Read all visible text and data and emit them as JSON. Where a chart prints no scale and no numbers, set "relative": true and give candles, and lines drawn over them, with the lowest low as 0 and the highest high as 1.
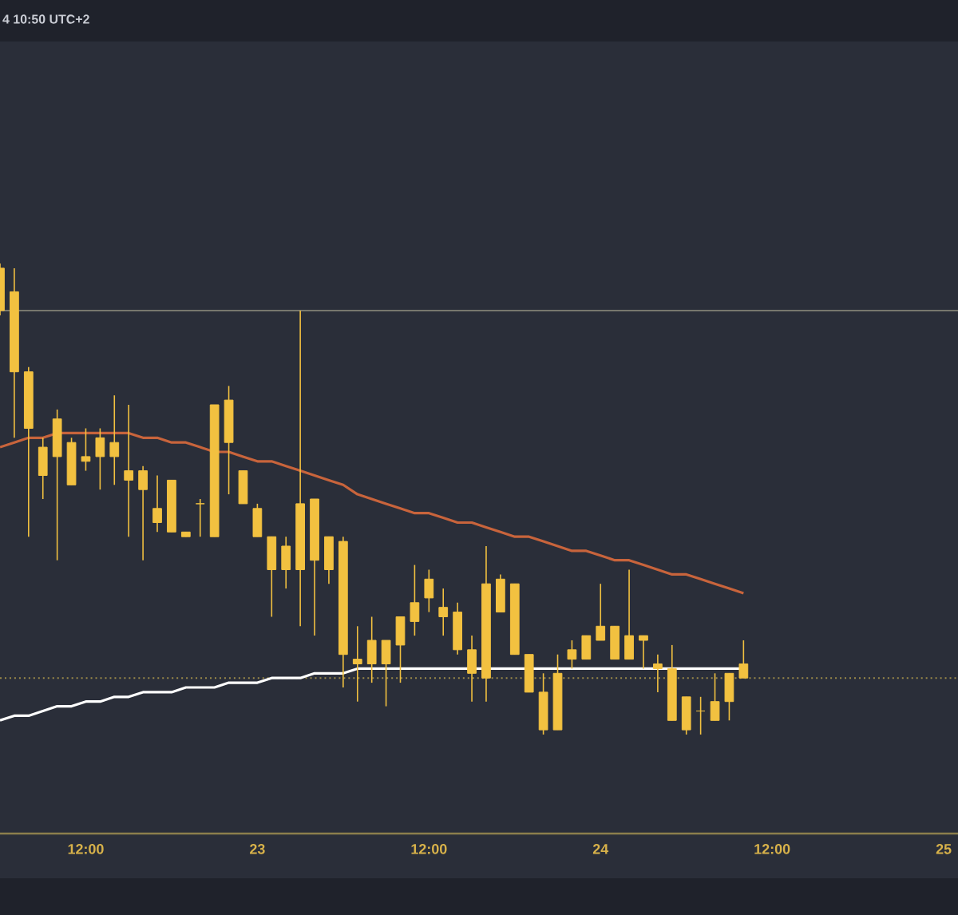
{
  "chart_data": {
    "type": "candlestick",
    "relative": true,
    "color": "#f2c140",
    "annotations": [
      "4 10:50 UTC+2"
    ],
    "categories": [
      null,
      null,
      null,
      null,
      null,
      null,
      "12:00",
      null,
      null,
      null,
      null,
      null,
      null,
      null,
      null,
      null,
      null,
      null,
      "23",
      null,
      null,
      null,
      null,
      null,
      null,
      null,
      null,
      null,
      null,
      null,
      "12:00",
      null,
      null,
      null,
      null,
      null,
      null,
      null,
      null,
      null,
      null,
      null,
      "24",
      null,
      null,
      null,
      null,
      null,
      null,
      null,
      null,
      null,
      null,
      null,
      "12:00",
      null,
      null,
      null,
      null,
      null,
      null,
      null,
      null,
      null,
      null,
      null,
      "25",
      null
    ],
    "ohlc": [
      [
        0.99,
        1.0,
        0.89,
        0.9
      ],
      [
        0.94,
        0.99,
        0.63,
        0.77
      ],
      [
        0.77,
        0.78,
        0.42,
        0.65
      ],
      [
        0.61,
        0.63,
        0.5,
        0.55
      ],
      [
        0.67,
        0.69,
        0.37,
        0.59
      ],
      [
        0.62,
        0.63,
        0.53,
        0.53
      ],
      [
        0.59,
        0.65,
        0.56,
        0.58
      ],
      [
        0.63,
        0.65,
        0.52,
        0.59
      ],
      [
        0.62,
        0.72,
        0.53,
        0.59
      ],
      [
        0.56,
        0.7,
        0.42,
        0.54
      ],
      [
        0.56,
        0.57,
        0.37,
        0.52
      ],
      [
        0.48,
        0.55,
        0.43,
        0.45
      ],
      [
        0.54,
        0.54,
        0.43,
        0.43
      ],
      [
        0.43,
        0.43,
        0.42,
        0.42
      ],
      [
        0.49,
        0.5,
        0.42,
        0.49
      ],
      [
        0.7,
        0.7,
        0.42,
        0.42
      ],
      [
        0.71,
        0.74,
        0.51,
        0.62
      ],
      [
        0.56,
        0.56,
        0.49,
        0.49
      ],
      [
        0.48,
        0.49,
        0.42,
        0.42
      ],
      [
        0.42,
        0.42,
        0.25,
        0.35
      ],
      [
        0.4,
        0.42,
        0.31,
        0.35
      ],
      [
        0.49,
        0.9,
        0.23,
        0.35
      ],
      [
        0.5,
        0.5,
        0.21,
        0.37
      ],
      [
        0.42,
        0.42,
        0.32,
        0.35
      ],
      [
        0.41,
        0.42,
        0.1,
        0.17
      ],
      [
        0.16,
        0.23,
        0.07,
        0.15
      ],
      [
        0.2,
        0.25,
        0.11,
        0.15
      ],
      [
        0.2,
        0.2,
        0.06,
        0.15
      ],
      [
        0.25,
        0.25,
        0.11,
        0.19
      ],
      [
        0.28,
        0.36,
        0.21,
        0.24
      ],
      [
        0.33,
        0.35,
        0.26,
        0.29
      ],
      [
        0.27,
        0.31,
        0.21,
        0.25
      ],
      [
        0.26,
        0.28,
        0.17,
        0.18
      ],
      [
        0.18,
        0.21,
        0.07,
        0.13
      ],
      [
        0.32,
        0.4,
        0.07,
        0.12
      ],
      [
        0.33,
        0.34,
        0.26,
        0.26
      ],
      [
        0.32,
        0.32,
        0.17,
        0.17
      ],
      [
        0.17,
        0.17,
        0.09,
        0.09
      ],
      [
        0.09,
        0.13,
        0,
        0.01
      ],
      [
        0.13,
        0.17,
        0.01,
        0.01
      ],
      [
        0.18,
        0.2,
        0.14,
        0.16
      ],
      [
        0.21,
        0.21,
        0.16,
        0.16
      ],
      [
        0.23,
        0.32,
        0.2,
        0.2
      ],
      [
        0.23,
        0.23,
        0.16,
        0.16
      ],
      [
        0.21,
        0.35,
        0.16,
        0.16
      ],
      [
        0.21,
        0.21,
        0.14,
        0.2
      ],
      [
        0.15,
        0.17,
        0.09,
        0.14
      ],
      [
        0.14,
        0.19,
        0.03,
        0.03
      ],
      [
        0.08,
        0.08,
        0,
        0.01
      ],
      [
        0.05,
        0.08,
        0,
        0.05
      ],
      [
        0.07,
        0.13,
        0.03,
        0.03
      ],
      [
        0.13,
        0.13,
        0.03,
        0.07
      ],
      [
        0.15,
        0.2,
        0.12,
        0.12
      ],
      null,
      null,
      null,
      null,
      null,
      null,
      null,
      null,
      null,
      null,
      null,
      null,
      null,
      null,
      null
    ],
    "series": [
      {
        "type": "line",
        "color": "#c8643c",
        "values": [
          0.61,
          0.62,
          0.63,
          0.63,
          0.64,
          0.64,
          0.64,
          0.64,
          0.64,
          0.64,
          0.63,
          0.63,
          0.62,
          0.62,
          0.61,
          0.6,
          0.6,
          0.59,
          0.58,
          0.58,
          0.57,
          0.56,
          0.55,
          0.54,
          0.53,
          0.51,
          0.5,
          0.49,
          0.48,
          0.47,
          0.47,
          0.46,
          0.45,
          0.45,
          0.44,
          0.43,
          0.42,
          0.42,
          0.41,
          0.4,
          0.39,
          0.39,
          0.38,
          0.37,
          0.37,
          0.36,
          0.35,
          0.34,
          0.34,
          0.33,
          0.32,
          0.31,
          0.3,
          null,
          null,
          null,
          null,
          null,
          null,
          null,
          null,
          null,
          null,
          null,
          null,
          null,
          null,
          null
        ]
      },
      {
        "type": "line",
        "color": "#ffffff",
        "values": [
          0.03,
          0.04,
          0.04,
          0.05,
          0.06,
          0.06,
          0.07,
          0.07,
          0.08,
          0.08,
          0.09,
          0.09,
          0.09,
          0.1,
          0.1,
          0.1,
          0.11,
          0.11,
          0.11,
          0.12,
          0.12,
          0.12,
          0.13,
          0.13,
          0.13,
          0.14,
          0.14,
          0.14,
          0.14,
          0.14,
          0.14,
          0.14,
          0.14,
          0.14,
          0.14,
          0.14,
          0.14,
          0.14,
          0.14,
          0.14,
          0.14,
          0.14,
          0.14,
          0.14,
          0.14,
          0.14,
          0.14,
          0.14,
          0.14,
          0.14,
          0.14,
          0.14,
          0.14,
          null,
          null,
          null,
          null,
          null,
          null,
          null,
          null,
          null,
          null,
          null,
          null,
          null,
          null,
          null
        ]
      }
    ],
    "ref_lines": [
      {
        "axis": "y",
        "value": 0.9,
        "color": "#77776e",
        "line_style": "solid"
      },
      {
        "axis": "y",
        "value": 0.12,
        "color": "#9c8a4a",
        "line_style": "dotted"
      }
    ],
    "grid": false
  }
}
